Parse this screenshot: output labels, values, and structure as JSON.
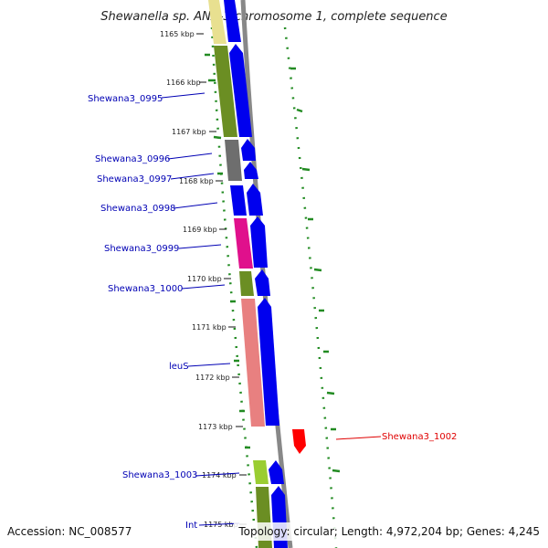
{
  "title": "Shewanella sp. ANA-3 chromosome 1, complete sequence",
  "accession": "Accession: NC_008577",
  "summary": "Topology: circular; Length: 4,972,204 bp; Genes: 4,245",
  "ticks": [
    "1165 kbp",
    "1166 kbp",
    "1167 kbp",
    "1168 kbp",
    "1169 kbp",
    "1170 kbp",
    "1171 kbp",
    "1172 kbp",
    "1173 kbp",
    "1174 kbp",
    "1175 kbp"
  ],
  "genes": {
    "g0995": "Shewana3_0995",
    "g0996": "Shewana3_0996",
    "g0997": "Shewana3_0997",
    "g0998": "Shewana3_0998",
    "g0999": "Shewana3_0999",
    "g1000": "Shewana3_1000",
    "leuS": "leuS",
    "g1002": "Shewana3_1002",
    "g1003": "Shewana3_1003",
    "int": "Int"
  },
  "colors": {
    "forward_cds": "#0000ee",
    "reverse_cds": "#ff0000",
    "backbone": "#888888",
    "gc_dots": "#228b22",
    "label_line_blue": "#0000b4",
    "label_line_red": "#e00000",
    "cog_olive": "#6b8e23",
    "cog_pink": "#e0108c",
    "cog_salmon": "#e88080",
    "cog_gray": "#6e6e6e",
    "cog_yellow": "#e8e090",
    "cog_lightgreen": "#9acd32"
  }
}
